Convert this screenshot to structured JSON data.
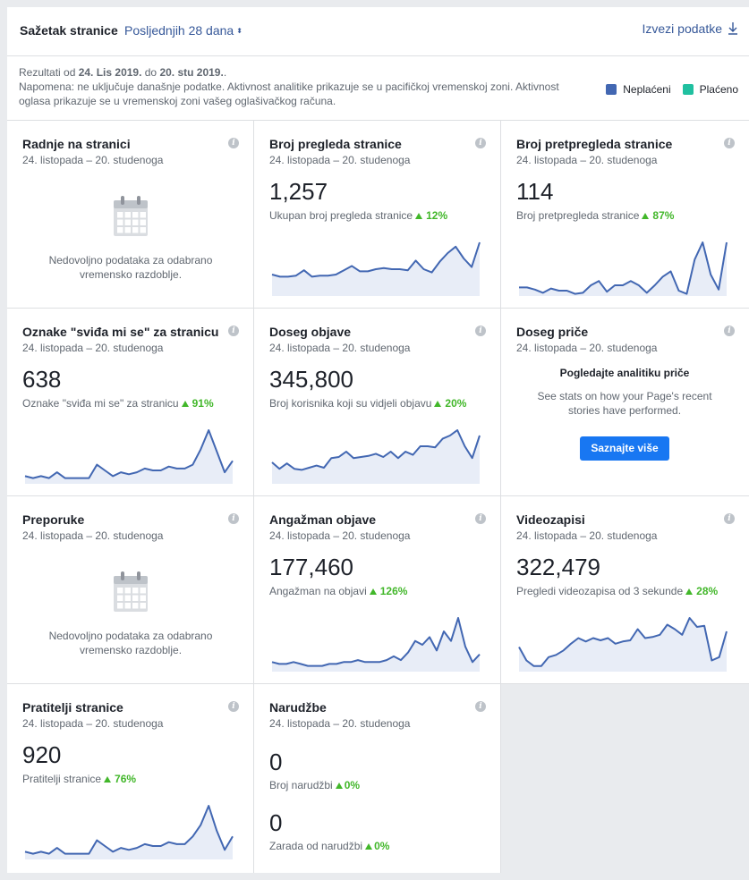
{
  "header": {
    "title": "Sažetak stranice",
    "range": "Posljednjih 28 dana",
    "export": "Izvezi podatke"
  },
  "note": {
    "results_prefix": "Rezultati od ",
    "date_from": "24. Lis 2019.",
    "results_mid": " do ",
    "date_to": "20. stu 2019.",
    "results_suffix": ".",
    "line2": "Napomena: ne uključuje današnje podatke. Aktivnost analitike prikazuje se u pacifičkoj vremenskoj zoni. Aktivnost oglasa prikazuje se u vremenskoj zoni vašeg oglašivačkog računa."
  },
  "legend": {
    "unpaid": {
      "label": "Neplaćeni",
      "color": "#4267b2"
    },
    "paid": {
      "label": "Plaćeno",
      "color": "#20c0a0"
    }
  },
  "info_glyph": "i",
  "cards": {
    "actions": {
      "title": "Radnje na stranici",
      "date": "24. listopada – 20. studenoga",
      "nodata": "Nedovoljno podataka za odabrano vremensko razdoblje."
    },
    "views": {
      "title": "Broj pregleda stranice",
      "date": "24. listopada – 20. studenoga",
      "value": "1,257",
      "sub": "Ukupan broj pregleda stranice",
      "delta": "12%",
      "spark": [
        20,
        18,
        18,
        19,
        24,
        18,
        19,
        19,
        20,
        24,
        28,
        23,
        23,
        25,
        26,
        25,
        25,
        24,
        33,
        25,
        22,
        32,
        40,
        46,
        35,
        27,
        50
      ]
    },
    "previews": {
      "title": "Broj pretpregleda stranice",
      "date": "24. listopada – 20. studenoga",
      "value": "114",
      "sub": "Broj pretpregleda stranice",
      "delta": "87%",
      "spark": [
        8,
        8,
        6,
        3,
        7,
        5,
        5,
        2,
        3,
        10,
        14,
        4,
        10,
        10,
        14,
        10,
        3,
        10,
        18,
        23,
        5,
        2,
        34,
        50,
        20,
        6,
        50
      ]
    },
    "likes": {
      "title": "Oznake \"sviđa mi se\" za stranicu",
      "date": "24. listopada – 20. studenoga",
      "value": "638",
      "sub": "Oznake \"sviđa mi se\" za stranicu",
      "delta": "91%",
      "spark": [
        4,
        3,
        4,
        3,
        6,
        3,
        3,
        3,
        3,
        10,
        7,
        4,
        6,
        5,
        6,
        8,
        7,
        7,
        9,
        8,
        8,
        10,
        18,
        28,
        17,
        6,
        12
      ]
    },
    "reach": {
      "title": "Doseg objave",
      "date": "24. listopada – 20. studenoga",
      "value": "345,800",
      "sub": "Broj korisnika koji su vidjeli objavu",
      "delta": "20%",
      "spark": [
        20,
        14,
        19,
        14,
        13,
        15,
        17,
        15,
        24,
        25,
        30,
        24,
        25,
        26,
        28,
        25,
        30,
        24,
        30,
        27,
        35,
        35,
        34,
        42,
        45,
        50,
        35,
        24,
        45
      ]
    },
    "story": {
      "title": "Doseg priče",
      "date": "24. listopada – 20. studenoga",
      "heading": "Pogledajte analitiku priče",
      "text": "See stats on how your Page's recent stories have performed.",
      "button": "Saznajte više"
    },
    "recommendations": {
      "title": "Preporuke",
      "date": "24. listopada – 20. studenoga",
      "nodata": "Nedovoljno podataka za odabrano vremensko razdoblje."
    },
    "engagement": {
      "title": "Angažman objave",
      "date": "24. listopada – 20. studenoga",
      "value": "177,460",
      "sub": "Angažman na objavi",
      "delta": "126%",
      "spark": [
        5,
        4,
        4,
        5,
        4,
        3,
        3,
        3,
        4,
        4,
        5,
        5,
        6,
        5,
        5,
        5,
        6,
        8,
        6,
        10,
        16,
        14,
        18,
        11,
        21,
        16,
        28,
        13,
        5,
        9
      ]
    },
    "videos": {
      "title": "Videozapisi",
      "date": "24. listopada – 20. studenoga",
      "value": "322,479",
      "sub": "Pregledi videozapisa od 3 sekunde",
      "delta": "28%",
      "spark": [
        22,
        10,
        5,
        5,
        13,
        15,
        19,
        25,
        30,
        27,
        30,
        28,
        30,
        25,
        27,
        28,
        38,
        30,
        31,
        33,
        42,
        38,
        33,
        48,
        40,
        41,
        10,
        13,
        36
      ]
    },
    "followers": {
      "title": "Pratitelji stranice",
      "date": "24. listopada – 20. studenoga",
      "value": "920",
      "sub": "Pratitelji stranice",
      "delta": "76%",
      "spark": [
        4,
        3,
        4,
        3,
        6,
        3,
        3,
        3,
        3,
        10,
        7,
        4,
        6,
        5,
        6,
        8,
        7,
        7,
        9,
        8,
        8,
        12,
        18,
        28,
        15,
        5,
        12
      ]
    },
    "orders": {
      "title": "Narudžbe",
      "date": "24. listopada – 20. studenoga",
      "value1": "0",
      "sub1": "Broj narudžbi",
      "delta1": "0%",
      "value2": "0",
      "sub2": "Zarada od narudžbi",
      "delta2": "0%"
    }
  }
}
